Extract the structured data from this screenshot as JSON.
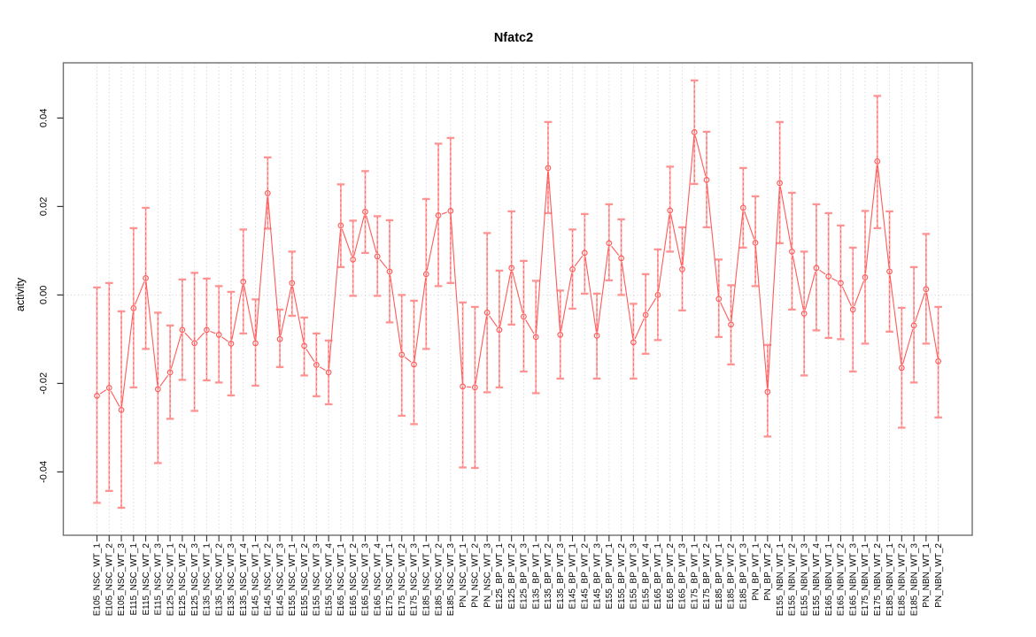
{
  "chart_data": {
    "type": "line",
    "title": "Nfatc2",
    "xlabel": "",
    "ylabel": "activity",
    "ylim": [
      -0.054,
      0.052
    ],
    "yticks": [
      -0.04,
      -0.02,
      0,
      0.02,
      0.04
    ],
    "grid": "dotted vertical gridline per category; dotted horizontal line at y=0",
    "legend_position": "none",
    "marker": "open-circle",
    "error_bars": true,
    "colors": {
      "point_line": "#ff5a5a",
      "bar_stem_solid": "#ffaaaa",
      "bar_cap": "#ff9393",
      "gridline": "#dcdcdc",
      "plot_border": "#6e6e6e",
      "tick": "#333333"
    },
    "categories": [
      "E105_NSC_WT_1",
      "E105_NSC_WT_2",
      "E105_NSC_WT_3",
      "E115_NSC_WT_1",
      "E115_NSC_WT_2",
      "E115_NSC_WT_3",
      "E125_NSC_WT_1",
      "E125_NSC_WT_2",
      "E125_NSC_WT_3",
      "E135_NSC_WT_1",
      "E135_NSC_WT_2",
      "E135_NSC_WT_3",
      "E135_NSC_WT_4",
      "E145_NSC_WT_1",
      "E145_NSC_WT_2",
      "E145_NSC_WT_3",
      "E155_NSC_WT_1",
      "E155_NSC_WT_2",
      "E155_NSC_WT_3",
      "E155_NSC_WT_4",
      "E165_NSC_WT_1",
      "E165_NSC_WT_2",
      "E165_NSC_WT_3",
      "E165_NSC_WT_4",
      "E175_NSC_WT_1",
      "E175_NSC_WT_2",
      "E175_NSC_WT_3",
      "E185_NSC_WT_1",
      "E185_NSC_WT_2",
      "E185_NSC_WT_3",
      "PN_NSC_WT_1",
      "PN_NSC_WT_2",
      "PN_NSC_WT_3",
      "E125_BP_WT_1",
      "E125_BP_WT_2",
      "E125_BP_WT_3",
      "E135_BP_WT_1",
      "E135_BP_WT_2",
      "E135_BP_WT_3",
      "E145_BP_WT_1",
      "E145_BP_WT_2",
      "E145_BP_WT_3",
      "E155_BP_WT_1",
      "E155_BP_WT_2",
      "E155_BP_WT_3",
      "E155_BP_WT_4",
      "E165_BP_WT_1",
      "E165_BP_WT_2",
      "E165_BP_WT_3",
      "E175_BP_WT_1",
      "E175_BP_WT_2",
      "E185_BP_WT_1",
      "E185_BP_WT_2",
      "E185_BP_WT_3",
      "PN_BP_WT_1",
      "PN_BP_WT_2",
      "E155_NBN_WT_1",
      "E155_NBN_WT_2",
      "E155_NBN_WT_3",
      "E155_NBN_WT_4",
      "E165_NBN_WT_1",
      "E165_NBN_WT_2",
      "E165_NBN_WT_3",
      "E175_NBN_WT_1",
      "E175_NBN_WT_2",
      "E185_NBN_WT_1",
      "E185_NBN_WT_2",
      "E185_NBN_WT_3",
      "PN_NBN_WT_1",
      "PN_NBN_WT_2"
    ],
    "series": [
      {
        "name": "activity",
        "values": [
          -0.0228,
          -0.021,
          -0.026,
          -0.003,
          0.0038,
          -0.0213,
          -0.0175,
          -0.0079,
          -0.0109,
          -0.0079,
          -0.009,
          -0.011,
          0.003,
          -0.0109,
          0.023,
          -0.01,
          0.0027,
          -0.0115,
          -0.0158,
          -0.0175,
          0.0157,
          0.008,
          0.0188,
          0.0087,
          0.0053,
          -0.0135,
          -0.0157,
          0.0047,
          0.018,
          0.019,
          -0.0207,
          -0.0209,
          -0.004,
          -0.0079,
          0.0061,
          -0.0049,
          -0.0095,
          0.0287,
          -0.009,
          0.0058,
          0.0095,
          -0.0092,
          0.0117,
          0.0083,
          -0.0107,
          -0.0045,
          0.0,
          0.0191,
          0.0058,
          0.0368,
          0.026,
          -0.0009,
          -0.0067,
          0.0197,
          0.0118,
          -0.0219,
          0.0253,
          0.0098,
          -0.0042,
          0.0061,
          0.0042,
          0.0027,
          -0.0033,
          0.004,
          0.0302,
          0.0053,
          -0.0165,
          -0.0069,
          0.0013,
          -0.015
        ],
        "ci_high": [
          0.0017,
          0.0027,
          -0.0037,
          0.0151,
          0.0197,
          -0.004,
          -0.0069,
          0.0035,
          0.005,
          0.0037,
          0.002,
          0.0007,
          0.0148,
          -0.001,
          0.0311,
          -0.0033,
          0.0098,
          -0.0051,
          -0.0087,
          -0.0103,
          0.025,
          0.0168,
          0.028,
          0.0178,
          0.0169,
          0.0,
          -0.0013,
          0.0217,
          0.0342,
          0.0355,
          -0.0017,
          -0.0027,
          0.014,
          0.0055,
          0.0189,
          0.0077,
          0.0032,
          0.0391,
          0.001,
          0.0148,
          0.0183,
          0.0003,
          0.0205,
          0.0171,
          -0.002,
          0.0047,
          0.0103,
          0.029,
          0.0153,
          0.0485,
          0.0369,
          0.008,
          0.0022,
          0.0287,
          0.0223,
          -0.0113,
          0.0391,
          0.0231,
          0.0098,
          0.0205,
          0.0185,
          0.0157,
          0.0107,
          0.019,
          0.045,
          0.0189,
          -0.0029,
          0.0063,
          0.0138,
          -0.0027
        ],
        "ci_low": [
          -0.047,
          -0.0443,
          -0.0481,
          -0.0209,
          -0.0122,
          -0.038,
          -0.028,
          -0.0192,
          -0.0262,
          -0.0193,
          -0.0198,
          -0.0227,
          -0.0087,
          -0.0205,
          0.015,
          -0.0163,
          -0.0047,
          -0.0182,
          -0.0229,
          -0.0247,
          0.0063,
          -0.0002,
          0.0095,
          -0.0002,
          -0.0062,
          -0.0273,
          -0.0292,
          -0.0122,
          0.002,
          0.0027,
          -0.039,
          -0.0391,
          -0.022,
          -0.0209,
          -0.0067,
          -0.0173,
          -0.0222,
          0.0185,
          -0.0189,
          -0.0031,
          0.0003,
          -0.0189,
          0.0033,
          0.0,
          -0.0189,
          -0.0133,
          -0.0102,
          0.0098,
          -0.0035,
          0.0251,
          0.0153,
          -0.0095,
          -0.0157,
          0.0107,
          0.002,
          -0.032,
          0.0117,
          -0.0033,
          -0.0182,
          -0.008,
          -0.0097,
          -0.01,
          -0.0173,
          -0.011,
          0.0151,
          -0.0083,
          -0.03,
          -0.0198,
          -0.011,
          -0.0277
        ]
      }
    ]
  }
}
